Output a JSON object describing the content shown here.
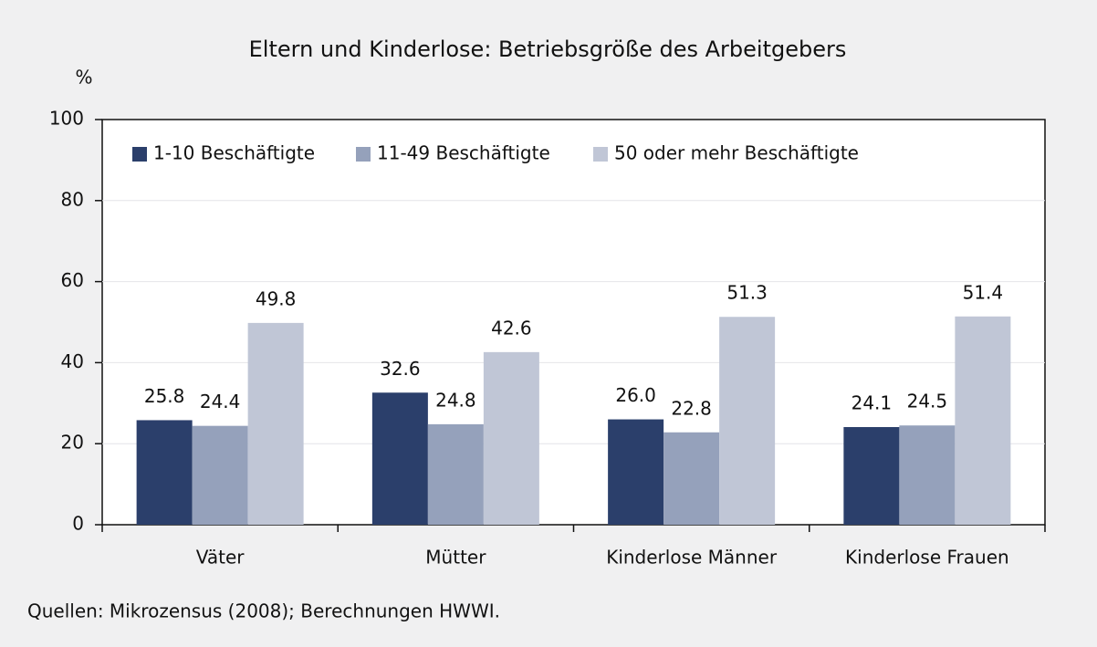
{
  "chart_data": {
    "type": "bar",
    "title": "Eltern und Kinderlose: Betriebsgröße des Arbeitgebers",
    "y_axis_label": "%",
    "source": "Quellen: Mikrozensus (2008); Berechnungen HWWI.",
    "categories": [
      "Väter",
      "Mütter",
      "Kinderlose Männer",
      "Kinderlose Frauen"
    ],
    "series": [
      {
        "name": "1-10 Beschäftigte",
        "color": "#2b3f6b",
        "values": [
          25.8,
          32.6,
          26.0,
          24.1
        ],
        "value_labels": [
          "25.8",
          "32.6",
          "26.0",
          "24.1"
        ]
      },
      {
        "name": "11-49 Beschäftigte",
        "color": "#95a1bb",
        "values": [
          24.4,
          24.8,
          22.8,
          24.5
        ],
        "value_labels": [
          "24.4",
          "24.8",
          "22.8",
          "24.5"
        ]
      },
      {
        "name": "50 oder mehr Beschäftigte",
        "color": "#c0c6d6",
        "values": [
          49.8,
          42.6,
          51.3,
          51.4
        ],
        "value_labels": [
          "49.8",
          "42.6",
          "51.3",
          "51.4"
        ]
      }
    ],
    "ylim": [
      0,
      100
    ],
    "yticks": [
      0,
      20,
      40,
      60,
      80,
      100
    ],
    "grid": true,
    "legend": "top-left"
  }
}
